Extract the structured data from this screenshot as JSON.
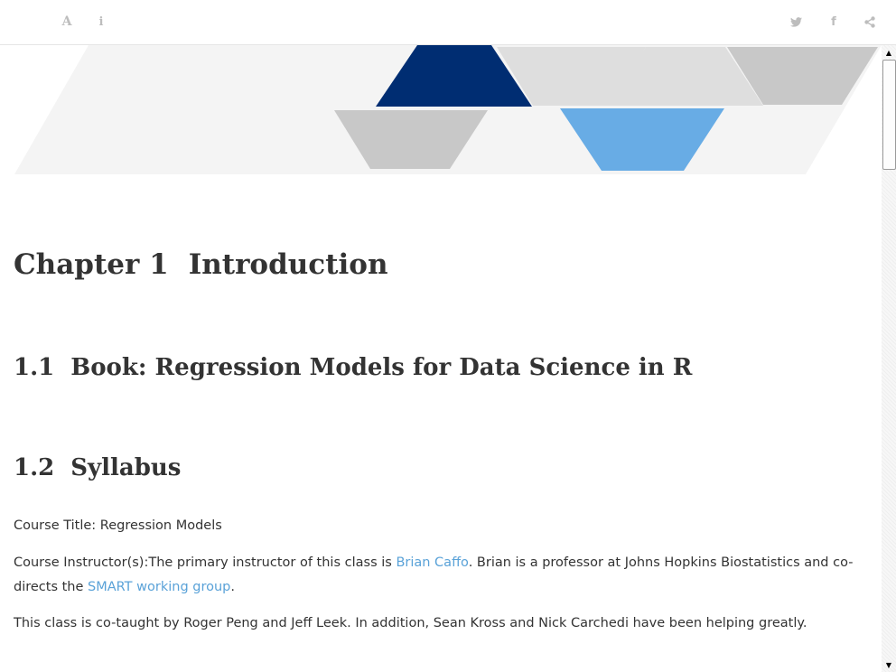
{
  "toolbar": {
    "left_icons": [
      "font-settings-icon",
      "info-icon"
    ],
    "right_icons": [
      "twitter-icon",
      "facebook-icon",
      "share-icon"
    ],
    "font_glyph": "A",
    "info_glyph": "i",
    "facebook_glyph": "f"
  },
  "banner": {
    "colors": {
      "light_band": "#f4f4f4",
      "navy": "#002d72",
      "sky": "#68ace5",
      "gray": "#c8c8c8",
      "pale_gray": "#dedede"
    }
  },
  "main": {
    "chapter": {
      "number": "Chapter 1",
      "title": "Introduction"
    },
    "sections": [
      {
        "number": "1.1",
        "title": "Book: Regression Models for Data Science in R"
      },
      {
        "number": "1.2",
        "title": "Syllabus"
      }
    ],
    "paragraphs": {
      "course_title": "Course Title: Regression Models",
      "instructor_prefix": "Course Instructor(s):The primary instructor of this class is ",
      "instructor_link": "Brian Caffo",
      "instructor_mid": ". Brian is a professor at Johns Hopkins Biostatistics and co-directs the ",
      "group_link": "SMART working group",
      "instructor_suffix": ".",
      "cotaught": "This class is co-taught by Roger Peng and Jeff Leek. In addition, Sean Kross and Nick Carchedi have been helping greatly."
    },
    "link_color": "#5aa2d8"
  }
}
